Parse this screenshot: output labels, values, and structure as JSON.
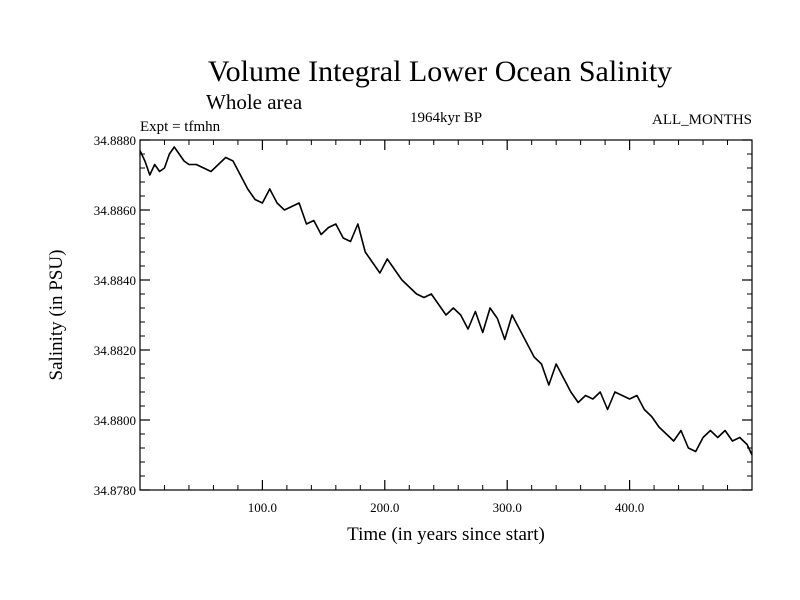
{
  "chart_data": {
    "type": "line",
    "title": "Volume Integral Lower Ocean Salinity",
    "subtitle": "Whole area",
    "expt_label": "Expt = tfmhn",
    "period_label": "1964kyr BP",
    "months_label": "ALL_MONTHS",
    "xlabel": "Time (in years since start)",
    "ylabel": "Salinity (in PSU)",
    "xlim": [
      0,
      500
    ],
    "ylim": [
      34.878,
      34.888
    ],
    "xticks": [
      100,
      200,
      300,
      400
    ],
    "xtick_labels": [
      "100.0",
      "200.0",
      "300.0",
      "400.0"
    ],
    "yticks": [
      34.878,
      34.88,
      34.882,
      34.884,
      34.886,
      34.888
    ],
    "ytick_labels": [
      "34.8780",
      "34.8800",
      "34.8820",
      "34.8840",
      "34.8860",
      "34.8880"
    ],
    "series": [
      {
        "name": "salinity",
        "color": "#000000",
        "x": [
          0,
          4,
          8,
          12,
          16,
          20,
          24,
          28,
          32,
          36,
          40,
          46,
          52,
          58,
          64,
          70,
          76,
          82,
          88,
          94,
          100,
          106,
          112,
          118,
          124,
          130,
          136,
          142,
          148,
          154,
          160,
          166,
          172,
          178,
          184,
          190,
          196,
          202,
          208,
          214,
          220,
          226,
          232,
          238,
          244,
          250,
          256,
          262,
          268,
          274,
          280,
          286,
          292,
          298,
          304,
          310,
          316,
          322,
          328,
          334,
          340,
          346,
          352,
          358,
          364,
          370,
          376,
          382,
          388,
          394,
          400,
          406,
          412,
          418,
          424,
          430,
          436,
          442,
          448,
          454,
          460,
          466,
          472,
          478,
          484,
          490,
          496,
          500
        ],
        "y": [
          34.8877,
          34.8874,
          34.887,
          34.8873,
          34.8871,
          34.8872,
          34.8876,
          34.8878,
          34.8876,
          34.8874,
          34.8873,
          34.8873,
          34.8872,
          34.8871,
          34.8873,
          34.8875,
          34.8874,
          34.887,
          34.8866,
          34.8863,
          34.8862,
          34.8866,
          34.8862,
          34.886,
          34.8861,
          34.8862,
          34.8856,
          34.8857,
          34.8853,
          34.8855,
          34.8856,
          34.8852,
          34.8851,
          34.8856,
          34.8848,
          34.8845,
          34.8842,
          34.8846,
          34.8843,
          34.884,
          34.8838,
          34.8836,
          34.8835,
          34.8836,
          34.8833,
          34.883,
          34.8832,
          34.883,
          34.8826,
          34.8831,
          34.8825,
          34.8832,
          34.8829,
          34.8823,
          34.883,
          34.8826,
          34.8822,
          34.8818,
          34.8816,
          34.881,
          34.8816,
          34.8812,
          34.8808,
          34.8805,
          34.8807,
          34.8806,
          34.8808,
          34.8803,
          34.8808,
          34.8807,
          34.8806,
          34.8807,
          34.8803,
          34.8801,
          34.8798,
          34.8796,
          34.8794,
          34.8797,
          34.8792,
          34.8791,
          34.8795,
          34.8797,
          34.8795,
          34.8797,
          34.8794,
          34.8795,
          34.8793,
          34.879
        ]
      }
    ]
  }
}
